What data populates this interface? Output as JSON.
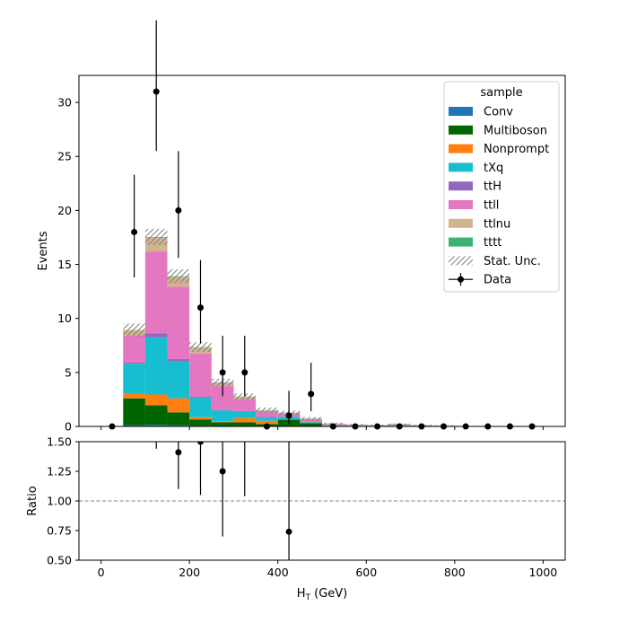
{
  "chart_data": {
    "type": "bar",
    "stacked": true,
    "x_bin_edges": [
      0,
      50,
      100,
      150,
      200,
      250,
      300,
      350,
      400,
      450,
      500,
      550,
      600,
      650,
      700,
      750,
      800,
      850,
      900,
      950,
      1000
    ],
    "xlabel": "H",
    "xlabel_sub": "T",
    "xlabel_unit": " (GeV)",
    "xlim": [
      -50,
      1050
    ],
    "x_ticks": [
      0,
      200,
      400,
      600,
      800,
      1000
    ],
    "x_tick_labels": [
      "0",
      "200",
      "400",
      "600",
      "800",
      "1000"
    ],
    "main": {
      "ylabel": "Events",
      "ylim": [
        0,
        32.5
      ],
      "y_ticks": [
        0,
        5,
        10,
        15,
        20,
        25,
        30
      ],
      "y_tick_labels": [
        "0",
        "5",
        "10",
        "15",
        "20",
        "25",
        "30"
      ],
      "series": [
        {
          "name": "Conv",
          "color": "#1f77b4",
          "values": [
            0,
            0.1,
            0.15,
            0.1,
            0.05,
            0.03,
            0.03,
            0.02,
            0.02,
            0.01,
            0,
            0,
            0,
            0,
            0,
            0,
            0,
            0,
            0,
            0
          ]
        },
        {
          "name": "Multiboson",
          "color": "#006400",
          "values": [
            0,
            2.5,
            1.8,
            1.2,
            0.6,
            0.35,
            0.35,
            0.2,
            0.6,
            0.3,
            0.05,
            0.02,
            0.02,
            0.05,
            0.02,
            0.02,
            0.01,
            0.01,
            0,
            0
          ]
        },
        {
          "name": "Nonprompt",
          "color": "#ff7f0e",
          "values": [
            0,
            0.4,
            1.0,
            1.3,
            0.2,
            0.1,
            0.4,
            0.3,
            0.05,
            0.05,
            0,
            0,
            0,
            0,
            0,
            0,
            0,
            0,
            0,
            0
          ]
        },
        {
          "name": "tXq",
          "color": "#17becf",
          "values": [
            0,
            2.8,
            5.3,
            3.4,
            1.8,
            1.0,
            0.6,
            0.3,
            0.2,
            0.1,
            0.05,
            0.03,
            0.02,
            0.02,
            0.02,
            0.01,
            0.01,
            0,
            0,
            0
          ]
        },
        {
          "name": "ttH",
          "color": "#9467bd",
          "values": [
            0,
            0.1,
            0.35,
            0.25,
            0.1,
            0.05,
            0.05,
            0.05,
            0.03,
            0.02,
            0.01,
            0.01,
            0.01,
            0,
            0,
            0,
            0,
            0,
            0,
            0
          ]
        },
        {
          "name": "ttll",
          "color": "#e377c2",
          "values": [
            0,
            2.5,
            7.6,
            6.7,
            4.0,
            2.2,
            1.1,
            0.5,
            0.3,
            0.2,
            0.12,
            0.08,
            0.05,
            0.05,
            0.05,
            0.03,
            0.02,
            0.02,
            0.02,
            0.01
          ]
        },
        {
          "name": "ttlnu",
          "color": "#d2b48c",
          "values": [
            0,
            0.5,
            1.3,
            0.9,
            0.55,
            0.3,
            0.2,
            0.1,
            0.05,
            0.03,
            0.02,
            0.02,
            0.01,
            0.01,
            0.01,
            0.01,
            0,
            0,
            0,
            0
          ]
        },
        {
          "name": "tttt",
          "color": "#3cb371",
          "values": [
            0,
            0.02,
            0.04,
            0.05,
            0.04,
            0.03,
            0.03,
            0.03,
            0.02,
            0.02,
            0.01,
            0.01,
            0.01,
            0.08,
            0.01,
            0.01,
            0,
            0,
            0,
            0
          ]
        }
      ],
      "stat_unc_label": "Stat. Unc.",
      "stat_unc": [
        0,
        0.6,
        0.75,
        0.65,
        0.45,
        0.35,
        0.3,
        0.25,
        0.2,
        0.15,
        0.1,
        0.07,
        0.05,
        0.05,
        0.04,
        0.03,
        0.03,
        0.02,
        0.02,
        0.02
      ],
      "data": {
        "name": "Data",
        "x": [
          25,
          75,
          125,
          175,
          225,
          275,
          325,
          375,
          425,
          475,
          525,
          575,
          625,
          675,
          725,
          775,
          825,
          875,
          925,
          975
        ],
        "y": [
          0,
          18,
          31,
          20,
          11,
          5,
          5,
          0,
          1,
          3,
          0,
          0,
          0,
          0,
          0,
          0,
          0,
          0,
          0,
          0
        ],
        "err_low": [
          0,
          4.2,
          5.5,
          4.4,
          3.3,
          2.2,
          2.2,
          0,
          0.8,
          1.6,
          0,
          0,
          0,
          0,
          0,
          0,
          0,
          0,
          0,
          0
        ],
        "err_high": [
          0,
          5.3,
          6.6,
          5.5,
          4.4,
          3.4,
          3.4,
          0,
          2.3,
          2.9,
          0,
          0,
          0,
          0,
          0,
          0,
          0,
          0,
          0,
          0
        ]
      },
      "legend_title": "sample",
      "legend_position": "upper right"
    },
    "ratio": {
      "ylabel": "Ratio",
      "ylim": [
        0.5,
        1.5
      ],
      "y_ticks": [
        0.5,
        0.75,
        1.0,
        1.25,
        1.5
      ],
      "y_tick_labels": [
        "0.50",
        "0.75",
        "1.00",
        "1.25",
        "1.50"
      ],
      "reference_line": 1.0,
      "points": [
        {
          "x": 125,
          "y": 1.68,
          "err_low": 0.24,
          "err_high": 0.3
        },
        {
          "x": 175,
          "y": 1.41,
          "err_low": 0.31,
          "err_high": 0.39
        },
        {
          "x": 225,
          "y": 1.5,
          "err_low": 0.45,
          "err_high": 0.58
        },
        {
          "x": 275,
          "y": 1.25,
          "err_low": 0.55,
          "err_high": 0.86
        },
        {
          "x": 325,
          "y": 1.67,
          "err_low": 0.63,
          "err_high": 0.9
        },
        {
          "x": 425,
          "y": 0.74,
          "err_low": 0.59,
          "err_high": 1.68
        }
      ]
    }
  }
}
